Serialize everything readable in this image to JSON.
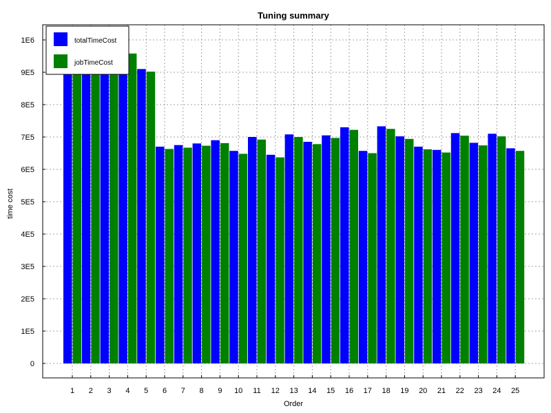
{
  "chart_data": {
    "type": "bar",
    "title": "Tuning summary",
    "xlabel": "Order",
    "ylabel": "time cost",
    "ylim": [
      0,
      1050000
    ],
    "yticks": [
      0,
      100000,
      200000,
      300000,
      400000,
      500000,
      600000,
      700000,
      800000,
      900000,
      1000000
    ],
    "ytick_labels": [
      "0",
      "1E5",
      "2E5",
      "3E5",
      "4E5",
      "5E5",
      "6E5",
      "7E5",
      "8E5",
      "9E5",
      "1E6"
    ],
    "categories": [
      "1",
      "2",
      "3",
      "4",
      "5",
      "6",
      "7",
      "8",
      "9",
      "10",
      "11",
      "12",
      "13",
      "14",
      "15",
      "16",
      "17",
      "18",
      "19",
      "20",
      "21",
      "22",
      "23",
      "24",
      "25"
    ],
    "grid": true,
    "legend_position": "top-left",
    "series": [
      {
        "name": "totalTimeCost",
        "color": "#0000ff",
        "values": [
          920000,
          930000,
          940000,
          945000,
          910000,
          670000,
          675000,
          680000,
          690000,
          657000,
          700000,
          645000,
          708000,
          685000,
          705000,
          730000,
          657000,
          733000,
          702000,
          670000,
          660000,
          712000,
          682000,
          710000,
          665000
        ]
      },
      {
        "name": "jobTimeCost",
        "color": "#008000",
        "values": [
          910000,
          920000,
          930000,
          958000,
          902000,
          663000,
          667000,
          673000,
          681000,
          648000,
          692000,
          637000,
          700000,
          678000,
          697000,
          722000,
          650000,
          725000,
          694000,
          662000,
          652000,
          704000,
          674000,
          702000,
          657000
        ]
      }
    ]
  }
}
